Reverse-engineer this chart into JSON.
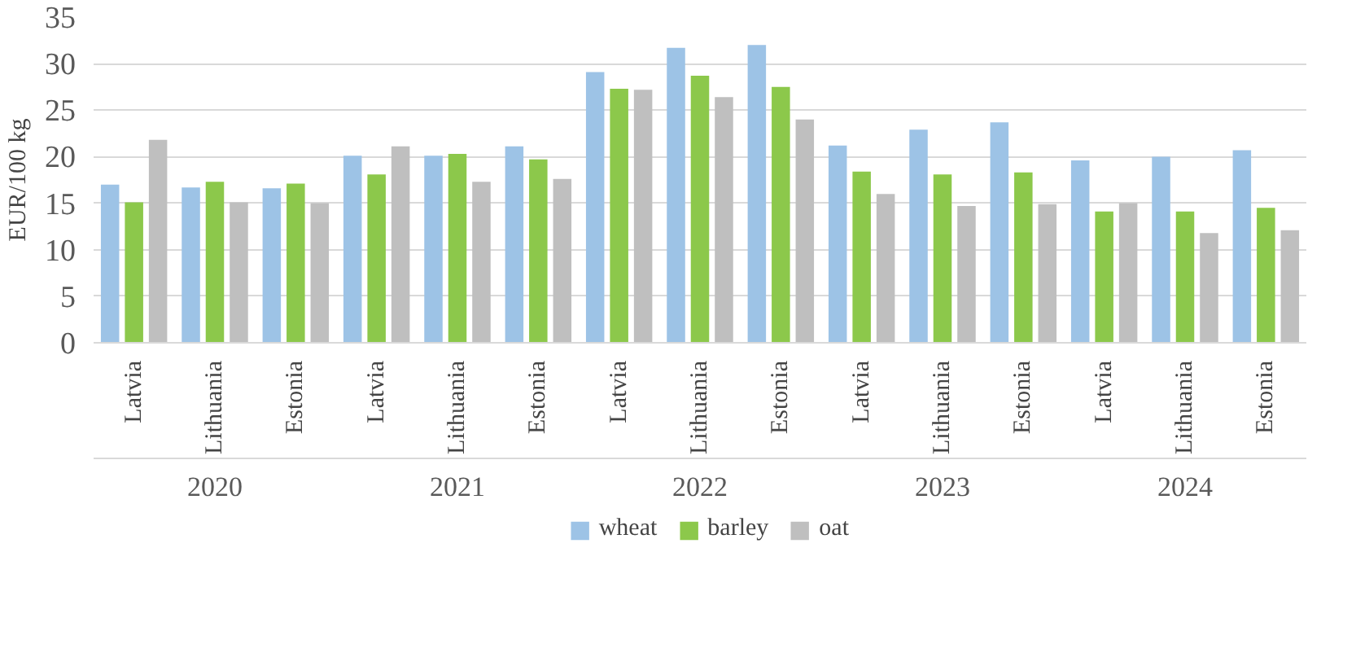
{
  "chart_data": {
    "type": "bar",
    "ylabel": "EUR/100 kg",
    "categories": [
      "Latvia",
      "Lithuania",
      "Estonia",
      "Latvia",
      "Lithuania",
      "Estonia",
      "Latvia",
      "Lithuania",
      "Estonia",
      "Latvia",
      "Lithuania",
      "Estonia",
      "Latvia",
      "Lithuania",
      "Estonia"
    ],
    "annotations": [
      "2020",
      "2021",
      "2022",
      "2023",
      "2024"
    ],
    "series": [
      {
        "name": "wheat",
        "color": "#9dc3e6",
        "values": [
          17.0,
          16.7,
          16.6,
          20.1,
          20.1,
          21.1,
          29.1,
          31.7,
          32.0,
          21.2,
          22.9,
          23.7,
          19.6,
          20.0,
          20.7
        ]
      },
      {
        "name": "barley",
        "color": "#8cc84b",
        "values": [
          15.1,
          17.3,
          17.1,
          18.1,
          20.3,
          19.7,
          27.3,
          28.7,
          27.5,
          18.4,
          18.1,
          18.3,
          14.1,
          14.1,
          14.5
        ]
      },
      {
        "name": "oat",
        "color": "#bfbfbf",
        "values": [
          21.8,
          15.1,
          15.0,
          21.1,
          17.3,
          17.6,
          27.2,
          26.4,
          24.0,
          16.0,
          14.7,
          14.9,
          15.0,
          11.8,
          12.1
        ]
      }
    ],
    "ylim": [
      0,
      35
    ],
    "yticks": [
      0,
      5,
      10,
      15,
      20,
      25,
      30,
      35
    ],
    "grid": "y",
    "legend": "bottom"
  }
}
